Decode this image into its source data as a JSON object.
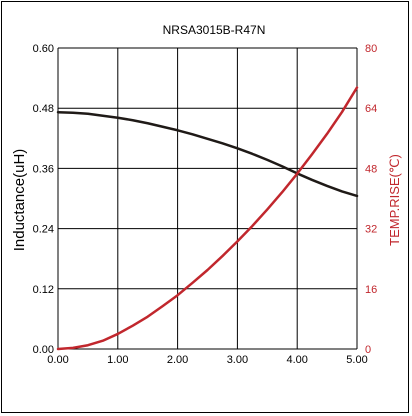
{
  "colors": {
    "inductance_line": "#1f1a17",
    "temp_line": "#c1272d",
    "right_axis_text": "#c1272d",
    "grid": "#000000",
    "text": "#000000"
  },
  "chart_data": {
    "type": "line",
    "title": "NRSA3015B-R47N",
    "xlabel": "",
    "ylabel": "Inductance(uH)",
    "y2label": "TEMP.RISE(℃)",
    "xlim": [
      0,
      5
    ],
    "ylim": [
      0,
      0.6
    ],
    "y2lim": [
      0,
      80
    ],
    "x_ticks": [
      "0.00",
      "1.00",
      "2.00",
      "3.00",
      "4.00",
      "5.00"
    ],
    "y_ticks": [
      "0.00",
      "0.12",
      "0.24",
      "0.36",
      "0.48",
      "0.60"
    ],
    "y2_ticks": [
      "0",
      "16",
      "32",
      "48",
      "64",
      "80"
    ],
    "grid": true,
    "series": [
      {
        "axis": "left",
        "x": [
          0,
          0.25,
          0.5,
          0.75,
          1.0,
          1.25,
          1.5,
          1.75,
          2.0,
          2.25,
          2.5,
          2.75,
          3.0,
          3.25,
          3.5,
          3.75,
          4.0,
          4.25,
          4.5,
          4.75,
          5.0
        ],
        "values": [
          0.472,
          0.471,
          0.469,
          0.465,
          0.461,
          0.456,
          0.45,
          0.443,
          0.436,
          0.428,
          0.419,
          0.41,
          0.4,
          0.389,
          0.377,
          0.364,
          0.35,
          0.337,
          0.325,
          0.314,
          0.305
        ]
      },
      {
        "axis": "right",
        "x": [
          0,
          0.25,
          0.5,
          0.75,
          1.0,
          1.25,
          1.5,
          1.75,
          2.0,
          2.25,
          2.5,
          2.75,
          3.0,
          3.25,
          3.5,
          3.75,
          4.0,
          4.25,
          4.5,
          4.75,
          5.0
        ],
        "values": [
          0,
          0.3,
          1.0,
          2.2,
          4.0,
          6.2,
          8.6,
          11.4,
          14.3,
          17.6,
          21.0,
          24.7,
          28.6,
          32.7,
          37.1,
          41.7,
          46.6,
          51.8,
          57.2,
          63.0,
          69.5
        ]
      }
    ]
  }
}
